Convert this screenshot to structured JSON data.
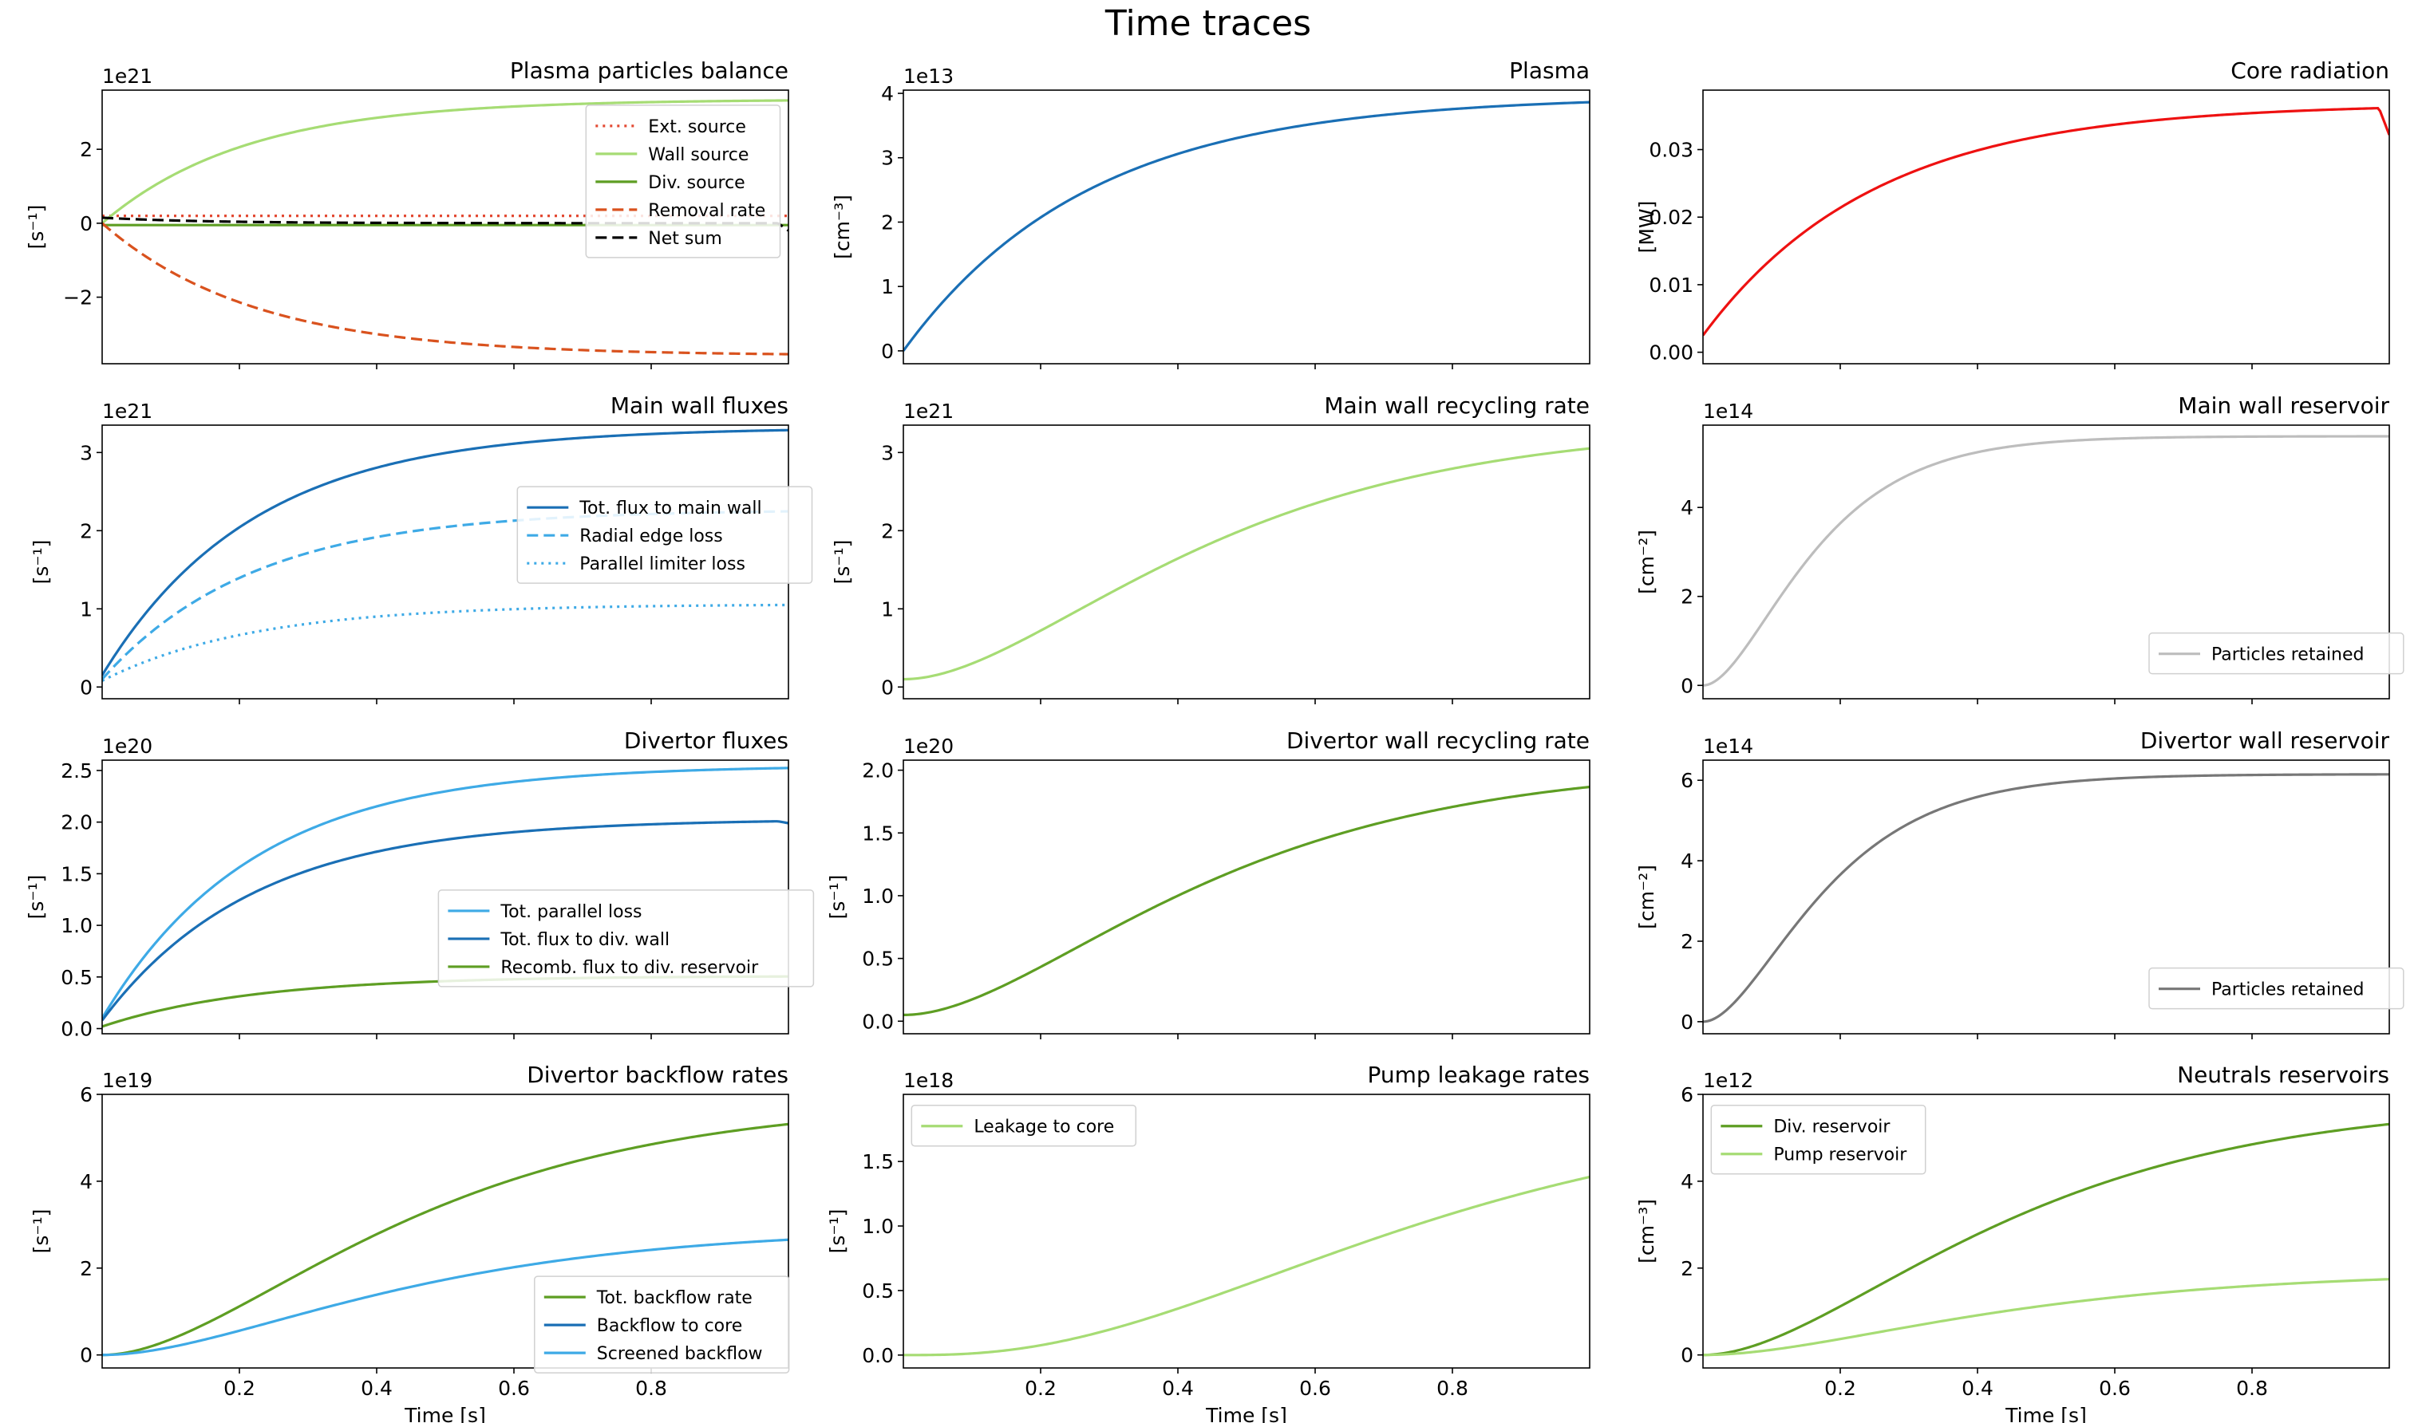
{
  "figure": {
    "title": "Time traces"
  },
  "chart_data": [
    {
      "type": "line",
      "title": "Plasma particles balance",
      "xlabel": "",
      "ylabel": "[s⁻¹]",
      "offset_text": "1e21",
      "xlim": [
        0,
        1
      ],
      "ylim": [
        -3.8,
        3.6
      ],
      "xticks": [
        0.2,
        0.4,
        0.6,
        0.8
      ],
      "show_xticklabels": false,
      "yticks": [
        -2,
        0,
        2
      ],
      "yticklabels": [
        "−2",
        "0",
        "2"
      ],
      "legend": {
        "position": "right",
        "box": [
          0.705,
          0.055
        ]
      },
      "series": [
        {
          "name": "Ext. source",
          "color": "#e34a33",
          "dash": "dot",
          "f": "const",
          "p": [
            0.2
          ]
        },
        {
          "name": "Wall source",
          "color": "#a6dc74",
          "dash": "solid",
          "f": "exp",
          "p": [
            0.0,
            3.35,
            0.21
          ]
        },
        {
          "name": "Div. source",
          "color": "#5e9e23",
          "dash": "solid",
          "f": "const",
          "p": [
            -0.05
          ]
        },
        {
          "name": "Removal rate",
          "color": "#d9521e",
          "dash": "dash",
          "f": "exp",
          "p": [
            0.0,
            -3.58,
            0.22
          ]
        },
        {
          "name": "Net sum",
          "color": "#000000",
          "dash": "dash",
          "f": "exp",
          "p": [
            0.15,
            -0.15,
            0.15
          ],
          "end_drop": -0.2
        }
      ]
    },
    {
      "type": "line",
      "title": "Plasma",
      "ylabel": "[cm⁻³]",
      "offset_text": "1e13",
      "xlim": [
        0,
        1
      ],
      "ylim": [
        -0.2,
        4.05
      ],
      "xticks": [
        0.2,
        0.4,
        0.6,
        0.8
      ],
      "show_xticklabels": false,
      "yticks": [
        0,
        1,
        2,
        3,
        4
      ],
      "yticklabels": [
        "0",
        "1",
        "2",
        "3",
        "4"
      ],
      "series": [
        {
          "name": "",
          "color": "#1a6fb5",
          "dash": "solid",
          "f": "exp",
          "p": [
            0.0,
            3.96,
            0.27
          ]
        }
      ]
    },
    {
      "type": "line",
      "title": "Core radiation",
      "ylabel": "[MW]",
      "offset_text": "",
      "xlim": [
        0,
        1
      ],
      "ylim": [
        -0.0017,
        0.0388
      ],
      "xticks": [
        0.2,
        0.4,
        0.6,
        0.8
      ],
      "show_xticklabels": false,
      "yticks": [
        0.0,
        0.01,
        0.02,
        0.03
      ],
      "yticklabels": [
        "0.00",
        "0.01",
        "0.02",
        "0.03"
      ],
      "series": [
        {
          "name": "",
          "color": "#ee1111",
          "dash": "solid",
          "f": "exp",
          "p": [
            0.0025,
            0.0343,
            0.25
          ],
          "end_drop": -0.004
        }
      ]
    },
    {
      "type": "line",
      "title": "Main wall fluxes",
      "ylabel": "[s⁻¹]",
      "offset_text": "1e21",
      "xlim": [
        0,
        1
      ],
      "ylim": [
        -0.15,
        3.35
      ],
      "xticks": [
        0.2,
        0.4,
        0.6,
        0.8
      ],
      "show_xticklabels": false,
      "yticks": [
        0,
        1,
        2,
        3
      ],
      "yticklabels": [
        "0",
        "1",
        "2",
        "3"
      ],
      "legend": {
        "position": "right",
        "box": [
          0.605,
          0.225
        ]
      },
      "series": [
        {
          "name": "Tot. flux to main wall",
          "color": "#1a6fb5",
          "dash": "solid",
          "f": "exp",
          "p": [
            0.15,
            3.17,
            0.22
          ]
        },
        {
          "name": "Radial edge loss",
          "color": "#3eaae6",
          "dash": "dash",
          "f": "exp",
          "p": [
            0.1,
            2.17,
            0.22
          ]
        },
        {
          "name": "Parallel limiter loss",
          "color": "#3eaae6",
          "dash": "dot",
          "f": "exp",
          "p": [
            0.08,
            0.98,
            0.22
          ]
        }
      ]
    },
    {
      "type": "line",
      "title": "Main wall recycling rate",
      "ylabel": "[s⁻¹]",
      "offset_text": "1e21",
      "xlim": [
        0,
        1
      ],
      "ylim": [
        -0.15,
        3.35
      ],
      "xticks": [
        0.2,
        0.4,
        0.6,
        0.8
      ],
      "show_xticklabels": false,
      "yticks": [
        0,
        1,
        2,
        3
      ],
      "yticklabels": [
        "0",
        "1",
        "2",
        "3"
      ],
      "series": [
        {
          "name": "",
          "color": "#a6dc74",
          "dash": "solid",
          "f": "sig",
          "p": [
            0.1,
            3.25,
            0.25
          ]
        }
      ]
    },
    {
      "type": "line",
      "title": "Main wall reservoir",
      "ylabel": "[cm⁻²]",
      "offset_text": "1e14",
      "xlim": [
        0,
        1
      ],
      "ylim": [
        -0.3,
        5.85
      ],
      "xticks": [
        0.2,
        0.4,
        0.6,
        0.8
      ],
      "show_xticklabels": false,
      "yticks": [
        0,
        2,
        4
      ],
      "yticklabels": [
        "0",
        "2",
        "4"
      ],
      "legend": {
        "position": "lower right",
        "box": [
          0.65,
          0.76
        ]
      },
      "series": [
        {
          "name": "Particles retained",
          "color": "#bdbdbd",
          "dash": "solid",
          "f": "sig",
          "p": [
            0.0,
            5.6,
            0.09
          ]
        }
      ]
    },
    {
      "type": "line",
      "title": "Divertor fluxes",
      "ylabel": "[s⁻¹]",
      "offset_text": "1e20",
      "xlim": [
        0,
        1
      ],
      "ylim": [
        -0.05,
        2.6
      ],
      "xticks": [
        0.2,
        0.4,
        0.6,
        0.8
      ],
      "show_xticklabels": false,
      "yticks": [
        0,
        0.5,
        1.0,
        1.5,
        2.0,
        2.5
      ],
      "yticklabels": [
        "0.0",
        "0.5",
        "1.0",
        "1.5",
        "2.0",
        "2.5"
      ],
      "legend": {
        "position": "right",
        "box": [
          0.49,
          0.475
        ]
      },
      "series": [
        {
          "name": "Tot. parallel loss",
          "color": "#3eaae6",
          "dash": "solid",
          "f": "exp",
          "p": [
            0.1,
            2.45,
            0.22
          ]
        },
        {
          "name": "Tot. flux to div. wall",
          "color": "#1a6fb5",
          "dash": "solid",
          "f": "exp",
          "p": [
            0.08,
            1.95,
            0.22
          ],
          "end_drop": -0.02
        },
        {
          "name": "Recomb. flux to div. reservoir",
          "color": "#5e9e23",
          "dash": "solid",
          "f": "exp",
          "p": [
            0.02,
            0.49,
            0.22
          ]
        }
      ]
    },
    {
      "type": "line",
      "title": "Divertor wall recycling rate",
      "ylabel": "[s⁻¹]",
      "offset_text": "1e20",
      "xlim": [
        0,
        1
      ],
      "ylim": [
        -0.1,
        2.08
      ],
      "xticks": [
        0.2,
        0.4,
        0.6,
        0.8
      ],
      "show_xticklabels": false,
      "yticks": [
        0,
        0.5,
        1.0,
        1.5,
        2.0
      ],
      "yticklabels": [
        "0.0",
        "0.5",
        "1.0",
        "1.5",
        "2.0"
      ],
      "series": [
        {
          "name": "",
          "color": "#5e9e23",
          "dash": "solid",
          "f": "sig",
          "p": [
            0.05,
            2.0,
            0.25
          ]
        }
      ]
    },
    {
      "type": "line",
      "title": "Divertor wall reservoir",
      "ylabel": "[cm⁻²]",
      "offset_text": "1e14",
      "xlim": [
        0,
        1
      ],
      "ylim": [
        -0.3,
        6.5
      ],
      "xticks": [
        0.2,
        0.4,
        0.6,
        0.8
      ],
      "show_xticklabels": false,
      "yticks": [
        0,
        2,
        4,
        6
      ],
      "yticklabels": [
        "0",
        "2",
        "4",
        "6"
      ],
      "legend": {
        "position": "lower right",
        "box": [
          0.65,
          0.76
        ]
      },
      "series": [
        {
          "name": "Particles retained",
          "color": "#777777",
          "dash": "solid",
          "f": "sig",
          "p": [
            0.0,
            6.15,
            0.1
          ]
        }
      ]
    },
    {
      "type": "line",
      "title": "Divertor backflow rates",
      "xlabel": "Time [s]",
      "ylabel": "[s⁻¹]",
      "offset_text": "1e19",
      "xlim": [
        0,
        1
      ],
      "ylim": [
        -0.3,
        6.0
      ],
      "xticks": [
        0.2,
        0.4,
        0.6,
        0.8
      ],
      "show_xticklabels": true,
      "xticklabels": [
        "0.2",
        "0.4",
        "0.6",
        "0.8"
      ],
      "yticks": [
        0,
        2,
        4,
        6
      ],
      "yticklabels": [
        "0",
        "2",
        "4",
        "6"
      ],
      "legend": {
        "position": "lower right",
        "box": [
          0.63,
          0.665
        ]
      },
      "series": [
        {
          "name": "Tot. backflow rate",
          "color": "#5e9e23",
          "dash": "solid",
          "f": "sig",
          "p": [
            0.0,
            5.85,
            0.25
          ]
        },
        {
          "name": "Backflow to core",
          "color": "#1a6fb5",
          "dash": "solid",
          "f": "none",
          "p": []
        },
        {
          "name": "Screened backflow",
          "color": "#3eaae6",
          "dash": "solid",
          "f": "sig",
          "p": [
            0.0,
            2.92,
            0.25
          ]
        }
      ]
    },
    {
      "type": "line",
      "title": "Pump leakage rates",
      "xlabel": "Time [s]",
      "ylabel": "[s⁻¹]",
      "offset_text": "1e18",
      "xlim": [
        0,
        1
      ],
      "ylim": [
        -0.1,
        2.02
      ],
      "xticks": [
        0.2,
        0.4,
        0.6,
        0.8
      ],
      "show_xticklabels": true,
      "xticklabels": [
        "0.2",
        "0.4",
        "0.6",
        "0.8"
      ],
      "yticks": [
        0,
        0.5,
        1.0,
        1.5
      ],
      "yticklabels": [
        "0.0",
        "0.5",
        "1.0",
        "1.5"
      ],
      "legend": {
        "position": "upper left",
        "box": [
          0.012,
          0.04
        ]
      },
      "series": [
        {
          "name": "Leakage to core",
          "color": "#a6dc74",
          "dash": "solid",
          "f": "sig2",
          "p": [
            0.0,
            1.93,
            0.27
          ]
        }
      ]
    },
    {
      "type": "line",
      "title": "Neutrals reservoirs",
      "xlabel": "Time [s]",
      "ylabel": "[cm⁻³]",
      "offset_text": "1e12",
      "xlim": [
        0,
        1
      ],
      "ylim": [
        -0.3,
        6.0
      ],
      "xticks": [
        0.2,
        0.4,
        0.6,
        0.8
      ],
      "show_xticklabels": true,
      "xticklabels": [
        "0.2",
        "0.4",
        "0.6",
        "0.8"
      ],
      "yticks": [
        0,
        2,
        4,
        6
      ],
      "yticklabels": [
        "0",
        "2",
        "4",
        "6"
      ],
      "legend": {
        "position": "upper left",
        "box": [
          0.012,
          0.04
        ]
      },
      "series": [
        {
          "name": "Div. reservoir",
          "color": "#5e9e23",
          "dash": "solid",
          "f": "sig",
          "p": [
            0.0,
            5.85,
            0.25
          ]
        },
        {
          "name": "Pump reservoir",
          "color": "#a6dc74",
          "dash": "solid",
          "f": "sig",
          "p": [
            0.0,
            1.92,
            0.25
          ]
        }
      ]
    }
  ]
}
